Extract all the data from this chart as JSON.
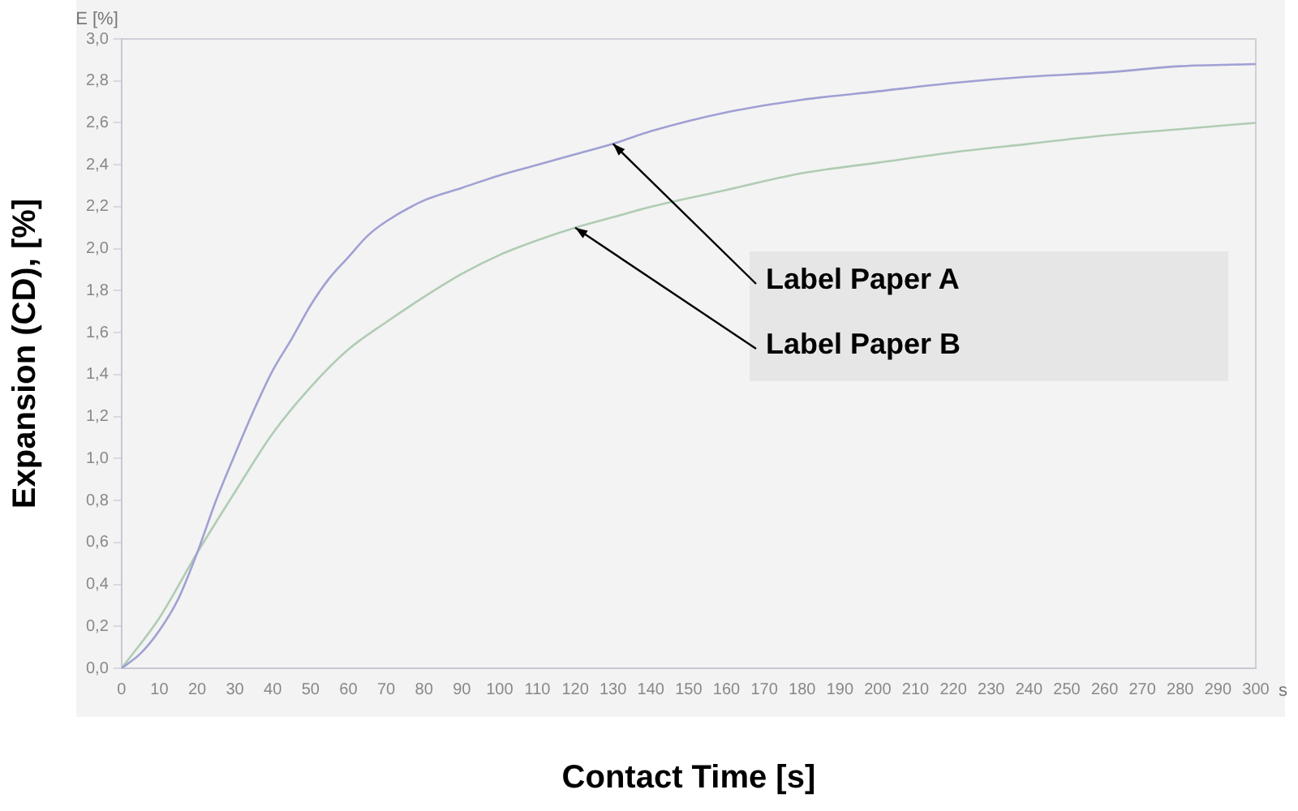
{
  "chart_data": {
    "type": "line",
    "xlabel": "Contact Time [s]",
    "ylabel": "Expansion (CD), [%]",
    "annotations": [
      "E [%]",
      "s",
      {
        "text": "Label Paper A",
        "x": 130,
        "y": 2.5
      },
      {
        "text": "Label Paper B",
        "x": 120,
        "y": 2.1
      }
    ],
    "series": [
      {
        "color": "#a0a0d4",
        "x": [
          0,
          5,
          10,
          15,
          20,
          25,
          30,
          35,
          40,
          45,
          50,
          55,
          60,
          65,
          70,
          80,
          90,
          100,
          110,
          120,
          130,
          140,
          160,
          180,
          200,
          220,
          240,
          260,
          280,
          300
        ],
        "values": [
          0,
          0.07,
          0.18,
          0.33,
          0.55,
          0.8,
          1.02,
          1.23,
          1.42,
          1.57,
          1.73,
          1.86,
          1.96,
          2.06,
          2.13,
          2.23,
          2.29,
          2.35,
          2.4,
          2.45,
          2.5,
          2.56,
          2.65,
          2.71,
          2.75,
          2.79,
          2.82,
          2.84,
          2.87,
          2.88
        ]
      },
      {
        "color": "#b0ccb4",
        "x": [
          0,
          10,
          20,
          30,
          40,
          50,
          60,
          70,
          80,
          90,
          100,
          110,
          120,
          130,
          140,
          160,
          180,
          200,
          220,
          240,
          260,
          280,
          300
        ],
        "values": [
          0,
          0.24,
          0.55,
          0.84,
          1.12,
          1.34,
          1.52,
          1.65,
          1.77,
          1.88,
          1.97,
          2.04,
          2.1,
          2.15,
          2.2,
          2.28,
          2.36,
          2.41,
          2.46,
          2.5,
          2.54,
          2.57,
          2.6
        ]
      }
    ],
    "xlim": [
      0,
      300
    ],
    "xticks": [
      0,
      10,
      20,
      30,
      40,
      50,
      60,
      70,
      80,
      90,
      100,
      110,
      120,
      130,
      140,
      150,
      160,
      170,
      180,
      190,
      200,
      210,
      220,
      230,
      240,
      250,
      260,
      270,
      280,
      290,
      300
    ],
    "ylim": [
      0,
      3
    ],
    "yticks": [
      {
        "value": 0,
        "label": "0,0"
      },
      {
        "value": 0.2,
        "label": "0,2"
      },
      {
        "value": 0.4,
        "label": "0,4"
      },
      {
        "value": 0.6,
        "label": "0,6"
      },
      {
        "value": 0.8,
        "label": "0,8"
      },
      {
        "value": 1,
        "label": "1,0"
      },
      {
        "value": 1.2,
        "label": "1,2"
      },
      {
        "value": 1.4,
        "label": "1,4"
      },
      {
        "value": 1.6,
        "label": "1,6"
      },
      {
        "value": 1.8,
        "label": "1,8"
      },
      {
        "value": 2,
        "label": "2,0"
      },
      {
        "value": 2.2,
        "label": "2,2"
      },
      {
        "value": 2.4,
        "label": "2,4"
      },
      {
        "value": 2.6,
        "label": "2,6"
      },
      {
        "value": 2.8,
        "label": "2,8"
      },
      {
        "value": 3,
        "label": "3,0"
      }
    ],
    "grid": false,
    "legend": false,
    "marker": "none",
    "line_style": "solid"
  }
}
